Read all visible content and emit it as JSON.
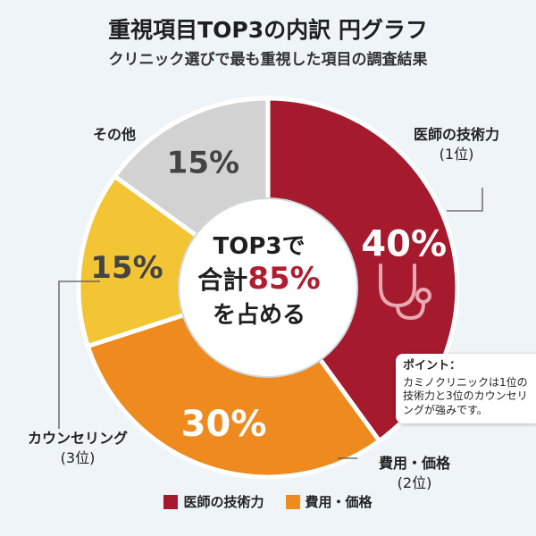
{
  "title": "重視項目TOP3の内訳 円グラフ",
  "subtitle": "クリニック選びで最も重視した項目の調査結果",
  "chart_data": {
    "type": "pie",
    "categories": [
      "医師の技術力",
      "費用・価格",
      "カウンセリング",
      "その他"
    ],
    "values": [
      40,
      30,
      15,
      15
    ],
    "value_labels": [
      "40%",
      "30%",
      "15%",
      "15%"
    ],
    "colors": [
      "#a51a2d",
      "#ee8a1e",
      "#f3c534",
      "#d2d2d2"
    ],
    "external_labels": [
      {
        "name": "医師の技術力",
        "rank": "(1位)"
      },
      {
        "name": "費用・価格",
        "rank": "(2位)"
      },
      {
        "name": "カウンセリング",
        "rank": "(3位)"
      },
      {
        "name": "その他",
        "rank": ""
      }
    ],
    "legend": [
      "医師の技術力",
      "費用・価格"
    ],
    "legend_colors": [
      "#a51a2d",
      "#ee8a1e"
    ],
    "legend_position": "bottom",
    "hole": true
  },
  "center": {
    "line1": "TOP3で",
    "line2_prefix": "合計",
    "line2_value": "85%",
    "line3": "を占める"
  },
  "callout": {
    "head": "ポイント：",
    "body": "カミノクリニックは1位の技術力と3位のカウンセリングが強みです。"
  },
  "icon": "stethoscope-icon"
}
